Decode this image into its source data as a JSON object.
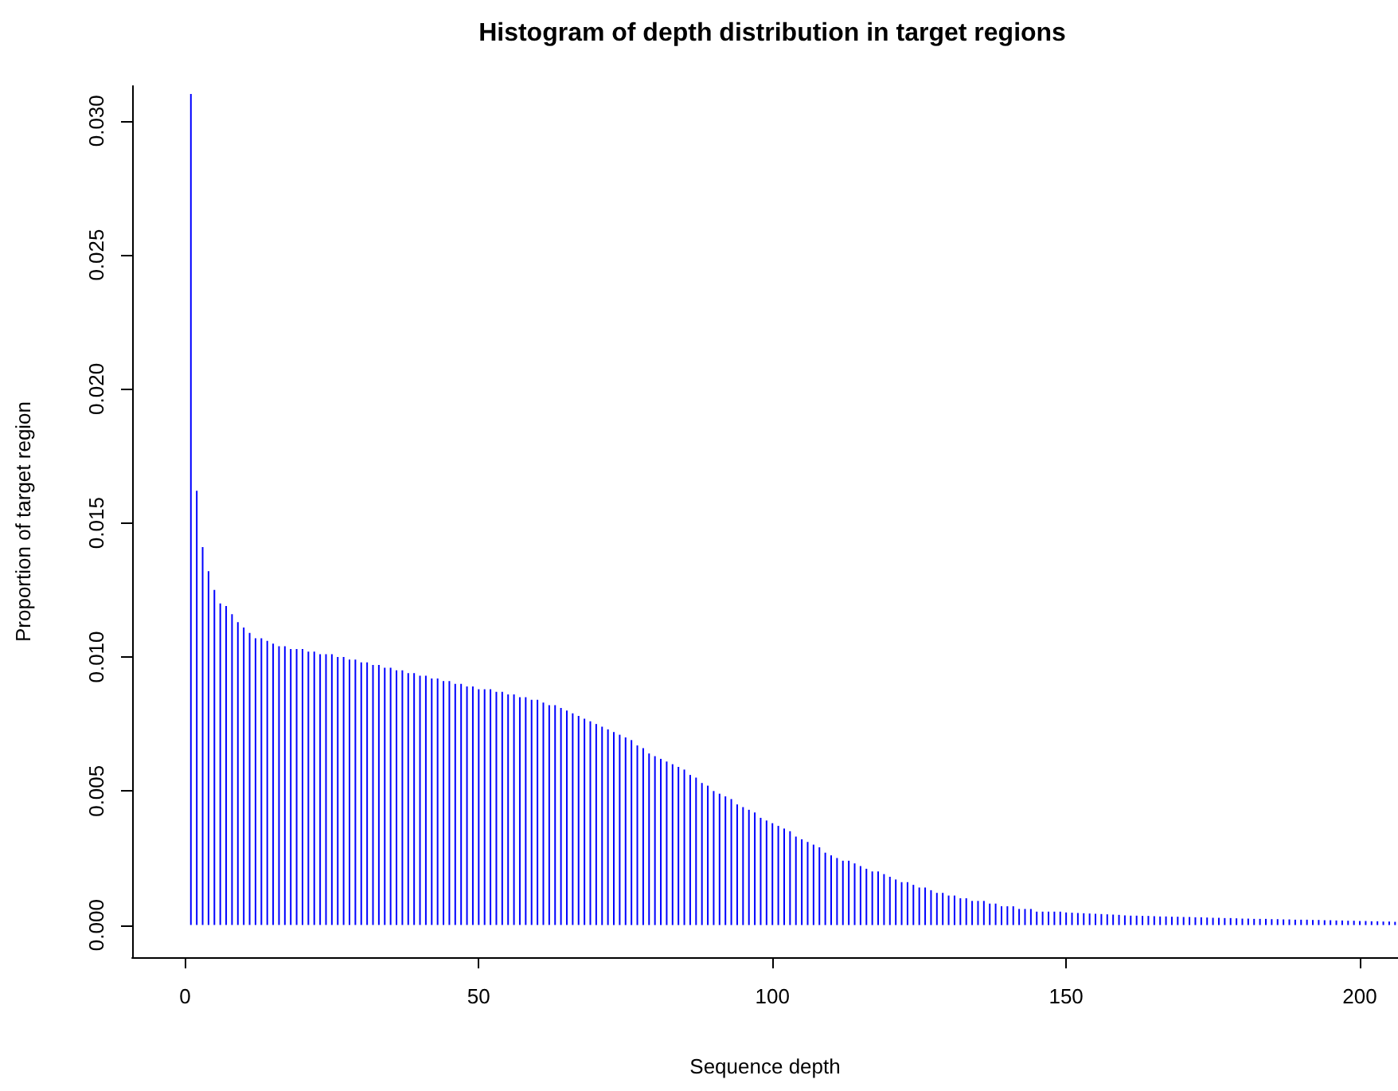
{
  "chart_data": {
    "type": "bar",
    "title": "Histogram of depth distribution in target regions",
    "xlabel": "Sequence depth",
    "ylabel": "Proportion of target region",
    "color": "#0000ff",
    "x": [
      1,
      2,
      3,
      4,
      5,
      6,
      7,
      8,
      9,
      10,
      11,
      12,
      13,
      14,
      15,
      16,
      17,
      18,
      19,
      20,
      21,
      22,
      23,
      24,
      25,
      26,
      27,
      28,
      29,
      30,
      31,
      32,
      33,
      34,
      35,
      36,
      37,
      38,
      39,
      40,
      41,
      42,
      43,
      44,
      45,
      46,
      47,
      48,
      49,
      50,
      51,
      52,
      53,
      54,
      55,
      56,
      57,
      58,
      59,
      60,
      61,
      62,
      63,
      64,
      65,
      66,
      67,
      68,
      69,
      70,
      71,
      72,
      73,
      74,
      75,
      76,
      77,
      78,
      79,
      80,
      81,
      82,
      83,
      84,
      85,
      86,
      87,
      88,
      89,
      90,
      91,
      92,
      93,
      94,
      95,
      96,
      97,
      98,
      99,
      100,
      101,
      102,
      103,
      104,
      105,
      106,
      107,
      108,
      109,
      110,
      111,
      112,
      113,
      114,
      115,
      116,
      117,
      118,
      119,
      120,
      121,
      122,
      123,
      124,
      125,
      126,
      127,
      128,
      129,
      130,
      131,
      132,
      133,
      134,
      135,
      136,
      137,
      138,
      139,
      140,
      141,
      142,
      143,
      144,
      145,
      146,
      147,
      148,
      149,
      150,
      151,
      152,
      153,
      154,
      155,
      156,
      157,
      158,
      159,
      160,
      161,
      162,
      163,
      164,
      165,
      166,
      167,
      168,
      169,
      170,
      171,
      172,
      173,
      174,
      175,
      176,
      177,
      178,
      179,
      180,
      181,
      182,
      183,
      184,
      185,
      186,
      187,
      188,
      189,
      190,
      191,
      192,
      193,
      194,
      195,
      196,
      197,
      198,
      199,
      200,
      201,
      202,
      203,
      204,
      205,
      206
    ],
    "values": [
      0.031,
      0.0162,
      0.0141,
      0.0132,
      0.0125,
      0.012,
      0.0119,
      0.0116,
      0.0113,
      0.0111,
      0.0109,
      0.0107,
      0.0107,
      0.0106,
      0.0105,
      0.0104,
      0.0104,
      0.0103,
      0.0103,
      0.0103,
      0.0102,
      0.0102,
      0.0101,
      0.0101,
      0.0101,
      0.01,
      0.01,
      0.0099,
      0.0099,
      0.0098,
      0.0098,
      0.0097,
      0.0097,
      0.0096,
      0.0096,
      0.0095,
      0.0095,
      0.0094,
      0.0094,
      0.0093,
      0.0093,
      0.0092,
      0.0092,
      0.0091,
      0.0091,
      0.009,
      0.009,
      0.0089,
      0.0089,
      0.0088,
      0.0088,
      0.0088,
      0.0087,
      0.0087,
      0.0086,
      0.0086,
      0.0085,
      0.0085,
      0.0084,
      0.0084,
      0.0083,
      0.0082,
      0.0082,
      0.0081,
      0.008,
      0.0079,
      0.0078,
      0.0077,
      0.0076,
      0.0075,
      0.0074,
      0.0073,
      0.0072,
      0.0071,
      0.007,
      0.0069,
      0.0067,
      0.0066,
      0.0064,
      0.0063,
      0.0062,
      0.0061,
      0.006,
      0.0059,
      0.0058,
      0.0056,
      0.0055,
      0.0053,
      0.0052,
      0.005,
      0.0049,
      0.0048,
      0.0047,
      0.0045,
      0.0044,
      0.0043,
      0.0042,
      0.004,
      0.0039,
      0.0038,
      0.0037,
      0.0036,
      0.0035,
      0.0033,
      0.0032,
      0.0031,
      0.003,
      0.0029,
      0.0027,
      0.0026,
      0.0025,
      0.0024,
      0.0024,
      0.0023,
      0.0022,
      0.0021,
      0.002,
      0.002,
      0.0019,
      0.0018,
      0.0017,
      0.0016,
      0.0016,
      0.0015,
      0.0014,
      0.0014,
      0.0013,
      0.0012,
      0.0012,
      0.0011,
      0.0011,
      0.001,
      0.001,
      0.0009,
      0.0009,
      0.0009,
      0.0008,
      0.0008,
      0.0007,
      0.0007,
      0.0007,
      0.0006,
      0.0006,
      0.0006,
      0.0005,
      0.0005,
      0.0005,
      0.0005,
      0.0005,
      0.00047,
      0.00046,
      0.00045,
      0.00044,
      0.00043,
      0.00042,
      0.00041,
      0.0004,
      0.00039,
      0.00038,
      0.00036,
      0.00035,
      0.00035,
      0.00034,
      0.00034,
      0.00033,
      0.00032,
      0.00032,
      0.00031,
      0.00031,
      0.0003,
      0.0003,
      0.00029,
      0.00029,
      0.00028,
      0.00027,
      0.00027,
      0.00026,
      0.00026,
      0.00025,
      0.00024,
      0.00024,
      0.00023,
      0.00023,
      0.00023,
      0.00022,
      0.00022,
      0.00021,
      0.00021,
      0.0002,
      0.0002,
      0.0002,
      0.00019,
      0.00019,
      0.00018,
      0.00018,
      0.00017,
      0.00017,
      0.00016,
      0.00016,
      0.00015,
      0.00015,
      0.00014,
      0.00014,
      0.00013,
      0.00013,
      0.00012
    ],
    "xlim": [
      -9,
      206.5
    ],
    "xticks": [
      0,
      50,
      100,
      150,
      200
    ],
    "ylim": [
      -0.0012,
      0.0313
    ],
    "yticks": [
      {
        "value": 0,
        "label": "0.000"
      },
      {
        "value": 0.005,
        "label": "0.005"
      },
      {
        "value": 0.01,
        "label": "0.010"
      },
      {
        "value": 0.015,
        "label": "0.015"
      },
      {
        "value": 0.02,
        "label": "0.020"
      },
      {
        "value": 0.025,
        "label": "0.025"
      },
      {
        "value": 0.03,
        "label": "0.030"
      }
    ]
  }
}
